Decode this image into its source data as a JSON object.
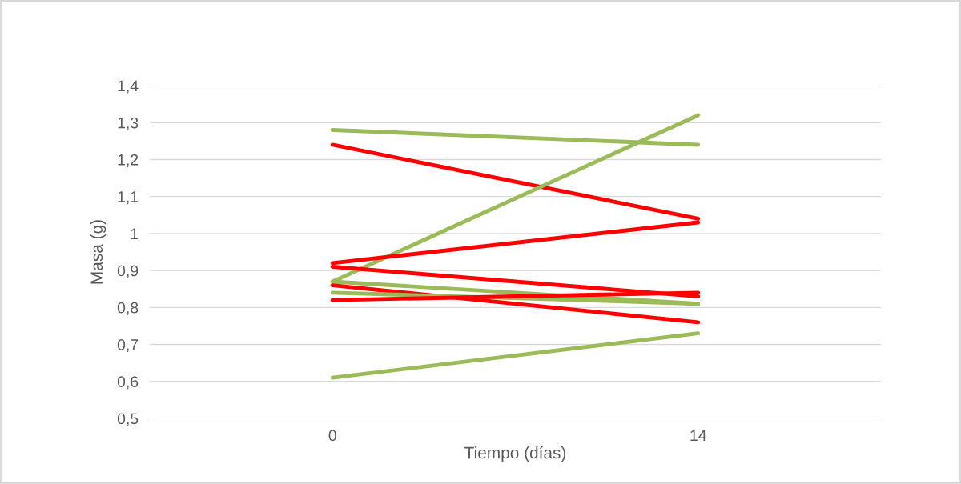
{
  "chart_data": {
    "type": "line",
    "xlabel": "Tiempo (días)",
    "ylabel": "Masa (g)",
    "categories": [
      "0",
      "14"
    ],
    "series": [
      {
        "color": "#9bbb59",
        "values": [
          1.28,
          1.24
        ]
      },
      {
        "color": "#ff0000",
        "values": [
          1.24,
          1.04
        ]
      },
      {
        "color": "#9bbb59",
        "values": [
          0.87,
          1.32
        ]
      },
      {
        "color": "#ff0000",
        "values": [
          0.92,
          1.03
        ]
      },
      {
        "color": "#ff0000",
        "values": [
          0.91,
          0.83
        ]
      },
      {
        "color": "#9bbb59",
        "values": [
          0.87,
          0.81
        ]
      },
      {
        "color": "#ff0000",
        "values": [
          0.86,
          0.76
        ]
      },
      {
        "color": "#9bbb59",
        "values": [
          0.84,
          0.81
        ]
      },
      {
        "color": "#ff0000",
        "values": [
          0.82,
          0.84
        ]
      },
      {
        "color": "#9bbb59",
        "values": [
          0.61,
          0.73
        ]
      }
    ],
    "ylim": [
      0.5,
      1.4
    ],
    "yticks": [
      {
        "value": 0.5,
        "label": "0,5"
      },
      {
        "value": 0.6,
        "label": "0,6"
      },
      {
        "value": 0.7,
        "label": "0,7"
      },
      {
        "value": 0.8,
        "label": "0,8"
      },
      {
        "value": 0.9,
        "label": "0,9"
      },
      {
        "value": 1,
        "label": "1"
      },
      {
        "value": 1.1,
        "label": "1,1"
      },
      {
        "value": 1.2,
        "label": "1,2"
      },
      {
        "value": 1.3,
        "label": "1,3"
      },
      {
        "value": 1.4,
        "label": "1,4"
      }
    ],
    "grid": "y",
    "marker": "none",
    "line_style": "solid"
  }
}
